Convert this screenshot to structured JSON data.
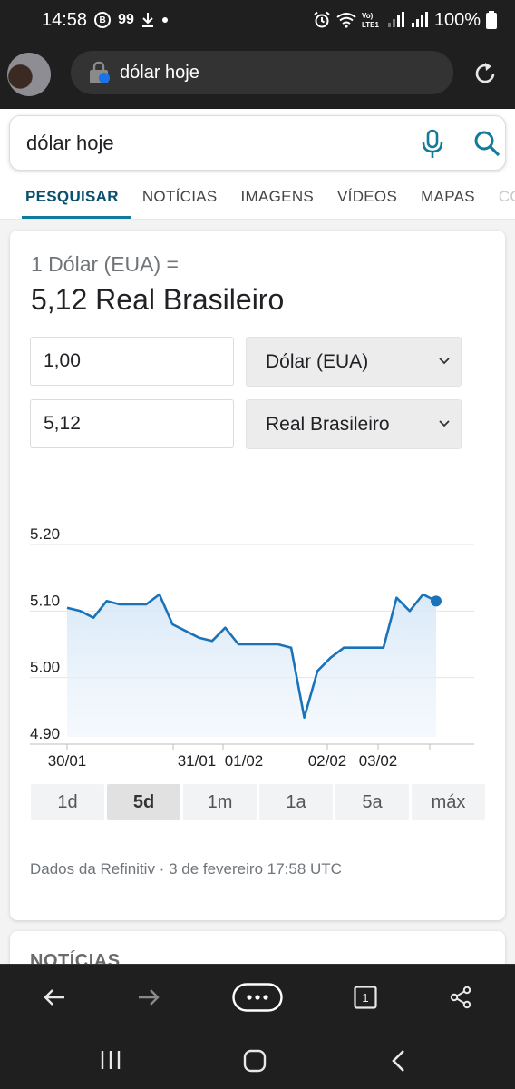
{
  "status_bar": {
    "time": "14:58",
    "badge_b": "B",
    "notif_count": "99",
    "battery": "100%"
  },
  "browser": {
    "url_text": "dólar hoje"
  },
  "search": {
    "query": "dólar hoje"
  },
  "tabs": [
    "PESQUISAR",
    "NOTÍCIAS",
    "IMAGENS",
    "VÍDEOS",
    "MAPAS",
    "CO"
  ],
  "converter": {
    "from_line": "1 Dólar (EUA) =",
    "result_line": "5,12 Real Brasileiro",
    "from_amount": "1,00",
    "from_currency": "Dólar (EUA)",
    "to_amount": "5,12",
    "to_currency": "Real Brasileiro"
  },
  "chart_data": {
    "type": "line",
    "y_ticks": [
      "5.20",
      "5.10",
      "5.00",
      "4.90"
    ],
    "ylim": [
      4.9,
      5.2
    ],
    "x_labels": [
      "30/01",
      "31/01",
      "01/02",
      "02/02",
      "03/02"
    ],
    "series": [
      {
        "values": [
          5.105,
          5.1,
          5.09,
          5.115,
          5.11,
          5.11,
          5.11,
          5.125,
          5.08,
          5.07,
          5.06,
          5.055,
          5.075,
          5.05,
          5.05,
          5.05,
          5.05,
          5.045,
          4.94,
          5.01,
          5.03,
          5.045,
          5.045,
          5.045,
          5.045,
          5.12,
          5.1,
          5.125,
          5.115
        ]
      }
    ],
    "line_color": "#1a73b8"
  },
  "ranges": [
    "1d",
    "5d",
    "1m",
    "1a",
    "5a",
    "máx"
  ],
  "active_range": "5d",
  "source": "Dados da Refinitiv · 3 de fevereiro 17:58 UTC",
  "next_section": "NOTÍCIAS",
  "toolbar": {
    "tabs_count": "1"
  }
}
